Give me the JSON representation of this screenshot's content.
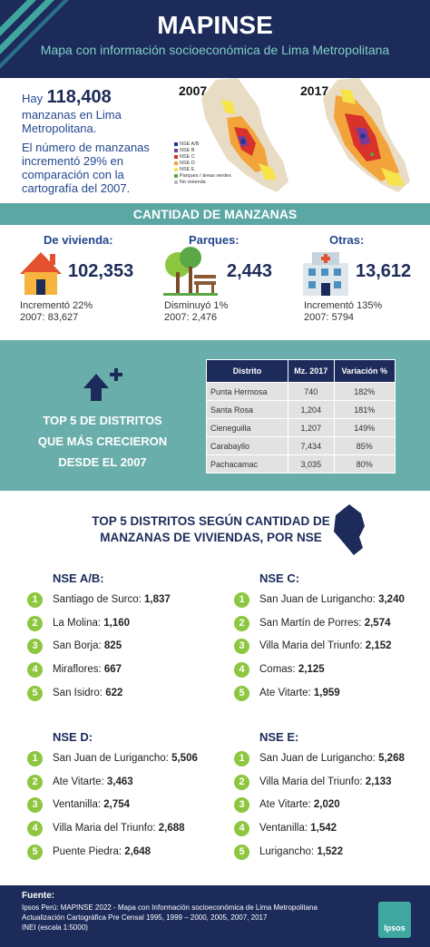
{
  "header": {
    "title": "MAPINSE",
    "subtitle": "Mapa con información socioeconómica de Lima Metropolitana"
  },
  "intro": {
    "lead": "Hay",
    "total": "118,408",
    "total_text": "manzanas en Lima Metropolitana.",
    "paragraph": "El número de manzanas incrementó 29% en comparación con la cartografía del 2007."
  },
  "maps": {
    "years": [
      "2007",
      "2017"
    ],
    "legend": [
      "NSE A/B",
      "NSE B",
      "NSE C",
      "NSE D",
      "NSE E",
      "Parques / áreas verdes",
      "No vivienda"
    ]
  },
  "quantity": {
    "title": "CANTIDAD DE MANZANAS",
    "items": [
      {
        "label": "De vivienda:",
        "value": "102,353",
        "change": "Incrementó 22%",
        "previous": "2007: 83,627"
      },
      {
        "label": "Parques:",
        "value": "2,443",
        "change": "Disminuyó 1%",
        "previous": "2007: 2,476"
      },
      {
        "label": "Otras:",
        "value": "13,612",
        "change": "Incrementó 135%",
        "previous": "2007: 5794"
      }
    ]
  },
  "growth": {
    "title": "TOP 5 DE DISTRITOS QUE MÁS CRECIERON DESDE EL 2007",
    "table": {
      "headers": [
        "Distrito",
        "Mz. 2017",
        "Variación %"
      ],
      "rows": [
        [
          "Punta Hermosa",
          "740",
          "182%"
        ],
        [
          "Santa Rosa",
          "1,204",
          "181%"
        ],
        [
          "Cieneguilla",
          "1,207",
          "149%"
        ],
        [
          "Carabayllo",
          "7,434",
          "85%"
        ],
        [
          "Pachacamac",
          "3,035",
          "80%"
        ]
      ]
    }
  },
  "nse": {
    "title": "TOP 5 DISTRITOS SEGÚN CANTIDAD DE MANZANAS DE VIVIENDAS, POR NSE",
    "groups": [
      {
        "name": "NSE A/B:",
        "items": [
          {
            "rank": "1",
            "district": "Santiago de Surco:",
            "value": "1,837"
          },
          {
            "rank": "2",
            "district": "La Molina:",
            "value": "1,160"
          },
          {
            "rank": "3",
            "district": "San Borja:",
            "value": "825"
          },
          {
            "rank": "4",
            "district": "Miraflores:",
            "value": "667"
          },
          {
            "rank": "5",
            "district": "San Isidro:",
            "value": "622"
          }
        ]
      },
      {
        "name": "NSE C:",
        "items": [
          {
            "rank": "1",
            "district": "San Juan de Lurigancho:",
            "value": "3,240"
          },
          {
            "rank": "2",
            "district": "San Martín de Porres:",
            "value": "2,574"
          },
          {
            "rank": "3",
            "district": "Villa Maria del Triunfo:",
            "value": "2,152"
          },
          {
            "rank": "4",
            "district": "Comas:",
            "value": "2,125"
          },
          {
            "rank": "5",
            "district": "Ate Vitarte:",
            "value": "1,959"
          }
        ]
      },
      {
        "name": "NSE D:",
        "items": [
          {
            "rank": "1",
            "district": "San Juan de Lurigancho:",
            "value": "5,506"
          },
          {
            "rank": "2",
            "district": "Ate Vitarte:",
            "value": "3,463"
          },
          {
            "rank": "3",
            "district": "Ventanilla:",
            "value": "2,754"
          },
          {
            "rank": "4",
            "district": "Villa Maria del Triunfo:",
            "value": "2,688"
          },
          {
            "rank": "5",
            "district": "Puente Piedra:",
            "value": "2,648"
          }
        ]
      },
      {
        "name": "NSE E:",
        "items": [
          {
            "rank": "1",
            "district": "San Juan de Lurigancho:",
            "value": "5,268"
          },
          {
            "rank": "2",
            "district": "Villa Maria del Triunfo:",
            "value": "2,133"
          },
          {
            "rank": "3",
            "district": "Ate Vitarte:",
            "value": "2,020"
          },
          {
            "rank": "4",
            "district": "Ventanilla:",
            "value": "1,542"
          },
          {
            "rank": "5",
            "district": "Lurigancho:",
            "value": "1,522"
          }
        ]
      }
    ]
  },
  "footer": {
    "label": "Fuente:",
    "lines": [
      "Ipsos Perú: MAPINSE 2022 - Mapa con Información socioeconómica de Lima Metropolitana",
      "Actualización Cartográfica Pre Censal 1995, 1999 – 2000, 2005, 2007, 2017",
      "INEI (escala 1:5000)"
    ],
    "logo": "Ipsos"
  }
}
